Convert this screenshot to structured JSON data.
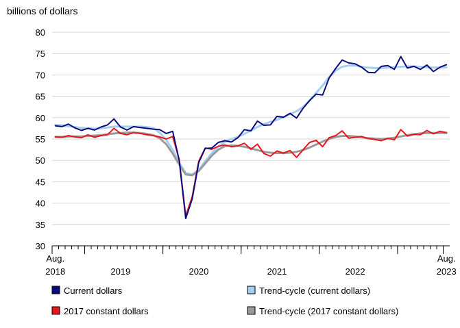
{
  "chart_data": {
    "type": "line",
    "ylabel": "billions of dollars",
    "ylim": [
      30,
      80
    ],
    "yticks": [
      30,
      35,
      40,
      45,
      50,
      55,
      60,
      65,
      70,
      75,
      80
    ],
    "x_start": "2018-08",
    "x_end": "2023-08",
    "x_labels": [
      {
        "month": "2018-08",
        "lines": [
          "Aug.",
          "2018"
        ]
      },
      {
        "month": "2019-06",
        "lines": [
          "2019"
        ]
      },
      {
        "month": "2020-06",
        "lines": [
          "2020"
        ]
      },
      {
        "month": "2021-06",
        "lines": [
          "2021"
        ]
      },
      {
        "month": "2022-06",
        "lines": [
          "2022"
        ]
      },
      {
        "month": "2023-08",
        "lines": [
          "Aug.",
          "2023"
        ]
      }
    ],
    "major_ticks": [
      "2018-08",
      "2019-01",
      "2020-01",
      "2021-01",
      "2022-01",
      "2023-01",
      "2023-08"
    ],
    "grid": "horizontal",
    "legend_position": "bottom",
    "series": [
      {
        "name": "Current dollars",
        "color": "#0b0b7f",
        "swatch": "#0b0b7f",
        "values": [
          58.1,
          57.9,
          58.5,
          57.6,
          57.0,
          57.5,
          57.1,
          57.8,
          58.3,
          59.7,
          57.8,
          57.1,
          57.9,
          57.7,
          57.5,
          57.3,
          57.2,
          56.3,
          56.8,
          50.0,
          36.4,
          41.0,
          49.5,
          52.8,
          52.9,
          54.2,
          54.6,
          54.3,
          55.3,
          57.2,
          56.9,
          59.2,
          58.2,
          58.3,
          60.3,
          60.1,
          61.0,
          59.9,
          62.2,
          64.0,
          65.5,
          65.3,
          69.3,
          71.5,
          73.5,
          72.8,
          72.6,
          71.8,
          70.6,
          70.5,
          72.0,
          72.2,
          71.3,
          74.3,
          71.6,
          72.0,
          71.3,
          72.3,
          70.8,
          71.8,
          72.4
        ]
      },
      {
        "name": "Trend-cycle (current dollars)",
        "color": "#a6cef0",
        "swatch": "#a6cef0",
        "values": [
          58.3,
          58.2,
          58.0,
          57.8,
          57.6,
          57.5,
          57.4,
          57.5,
          57.7,
          57.9,
          57.9,
          57.9,
          57.9,
          57.9,
          57.8,
          57.6,
          56.5,
          54.8,
          52.5,
          49.5,
          47.0,
          46.7,
          47.8,
          49.8,
          51.7,
          53.2,
          54.3,
          55.0,
          55.5,
          56.2,
          57.0,
          57.8,
          58.5,
          59.0,
          59.5,
          60.1,
          60.8,
          61.5,
          62.5,
          64.0,
          65.8,
          67.5,
          69.5,
          71.0,
          71.9,
          72.2,
          72.2,
          71.9,
          71.7,
          71.6,
          71.6,
          71.7,
          71.8,
          71.9,
          72.0,
          72.0,
          71.9,
          71.8,
          71.7,
          71.7,
          71.8
        ]
      },
      {
        "name": "2017 constant dollars",
        "color": "#e8151b",
        "swatch": "#e8151b",
        "values": [
          55.5,
          55.4,
          55.8,
          55.5,
          55.3,
          56.0,
          55.4,
          55.8,
          56.0,
          57.5,
          56.3,
          56.0,
          56.5,
          56.3,
          56.0,
          55.8,
          55.5,
          55.0,
          55.6,
          50.2,
          37.0,
          41.5,
          49.8,
          52.9,
          52.6,
          53.3,
          53.6,
          53.2,
          53.4,
          54.0,
          52.6,
          53.8,
          51.6,
          51.0,
          52.2,
          51.7,
          52.3,
          50.7,
          52.5,
          54.2,
          54.7,
          53.2,
          55.3,
          55.8,
          56.9,
          55.2,
          55.4,
          55.6,
          55.1,
          54.9,
          54.6,
          55.2,
          54.8,
          57.2,
          55.7,
          56.1,
          56.0,
          57.0,
          56.2,
          56.8,
          56.5
        ]
      },
      {
        "name": "Trend-cycle (2017 constant dollars)",
        "color": "#9a9a9a",
        "swatch": "#9a9a9a",
        "values": [
          55.5,
          55.5,
          55.6,
          55.6,
          55.6,
          55.7,
          55.8,
          55.9,
          56.1,
          56.3,
          56.4,
          56.5,
          56.5,
          56.4,
          56.2,
          55.9,
          55.2,
          53.8,
          51.6,
          49.0,
          46.7,
          46.5,
          47.5,
          49.3,
          51.1,
          52.5,
          53.3,
          53.5,
          53.4,
          53.2,
          52.8,
          52.4,
          52.0,
          51.8,
          51.7,
          51.7,
          51.8,
          52.0,
          52.4,
          53.0,
          53.7,
          54.4,
          55.0,
          55.5,
          55.7,
          55.7,
          55.6,
          55.4,
          55.2,
          55.1,
          55.0,
          55.1,
          55.3,
          55.6,
          55.9,
          56.1,
          56.3,
          56.4,
          56.4,
          56.4,
          56.4
        ]
      }
    ]
  }
}
